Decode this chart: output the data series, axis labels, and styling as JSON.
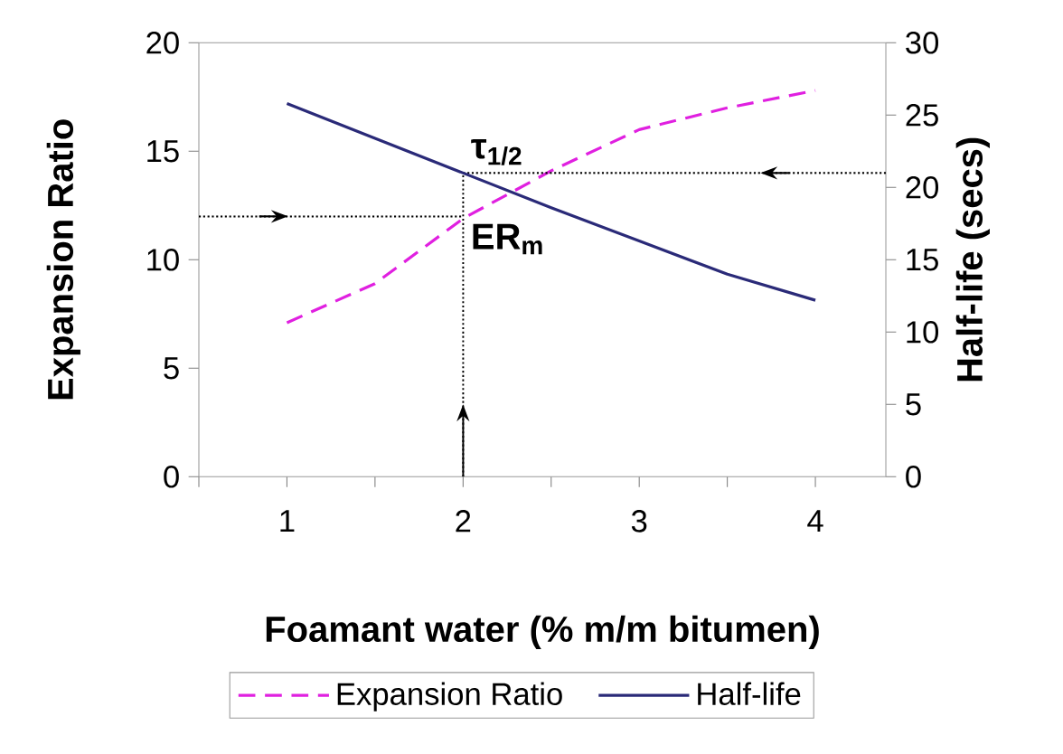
{
  "chart_data": {
    "type": "line",
    "xlabel": "Foamant water (% m/m bitumen)",
    "ylabel": "Expansion Ratio",
    "y2label": "Half-life (secs)",
    "x": [
      1,
      1.5,
      2,
      2.5,
      3,
      3.5,
      4
    ],
    "series": [
      {
        "name": "Expansion Ratio",
        "color": "#e020e0",
        "line_style": "dashed",
        "values": [
          7.1,
          8.9,
          11.9,
          14.1,
          16.0,
          17.0,
          17.8
        ]
      },
      {
        "name": "Half-life",
        "color": "#2a2a78",
        "line_style": "solid",
        "axis": "y2",
        "values": [
          25.8,
          23.4,
          21.0,
          18.6,
          16.3,
          14.0,
          12.2
        ]
      }
    ],
    "xlim": [
      0.5,
      4.4
    ],
    "xticks": [
      {
        "value": 0.5,
        "label": null
      },
      1,
      {
        "value": 1.5,
        "label": null
      },
      2,
      {
        "value": 2.5,
        "label": null
      },
      3,
      {
        "value": 3.5,
        "label": null
      },
      4
    ],
    "ylim": [
      0,
      20
    ],
    "yticks": [
      0,
      5,
      10,
      15,
      20
    ],
    "y2lim": [
      0,
      30
    ],
    "y2ticks": [
      0,
      5,
      10,
      15,
      20,
      25,
      30
    ],
    "annotations": [
      {
        "text": "τ$_{1/2}$",
        "x": 2,
        "y": 14
      },
      {
        "text": "ER$_{m}$",
        "x": 2,
        "y": 12
      }
    ],
    "ref_lines": [
      {
        "axis": "y",
        "value": 12,
        "line_style": "dotted",
        "color": "#000000"
      },
      {
        "axis": "y2",
        "value": 21,
        "line_style": "dotted",
        "color": "#000000"
      },
      {
        "axis": "x",
        "value": 2,
        "line_style": "dotted",
        "color": "#000000"
      }
    ],
    "marker": "none",
    "grid": false,
    "legend": "bottom"
  }
}
